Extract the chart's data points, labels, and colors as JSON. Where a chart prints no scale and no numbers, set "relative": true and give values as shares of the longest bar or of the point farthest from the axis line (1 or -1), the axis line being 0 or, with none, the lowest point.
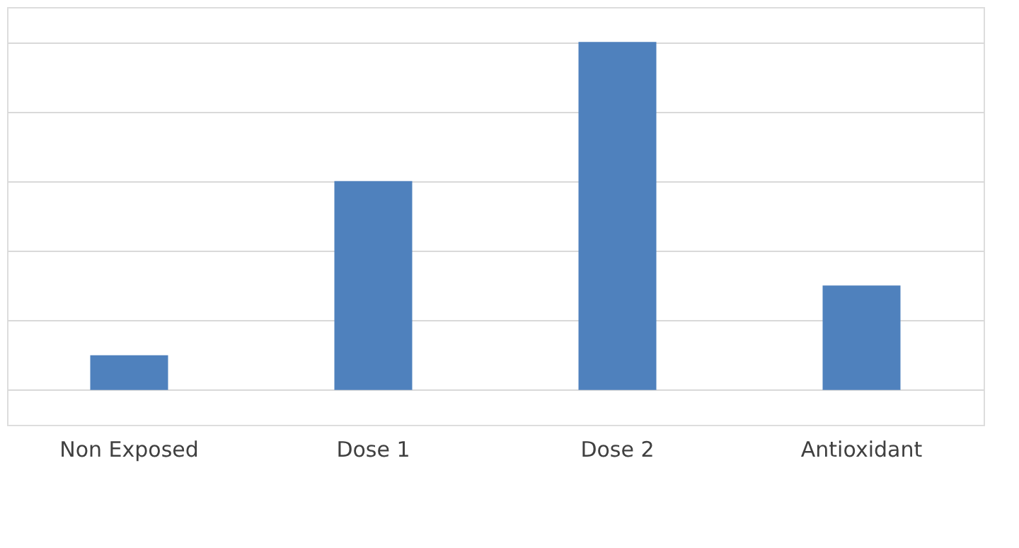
{
  "chart_data": {
    "type": "bar",
    "relative": true,
    "categories": [
      "Non Exposed",
      "Dose 1",
      "Dose 2",
      "Antioxidant"
    ],
    "values": [
      0.1,
      0.6,
      1,
      0.3
    ],
    "color": "#4f81bd",
    "grid": "y"
  }
}
